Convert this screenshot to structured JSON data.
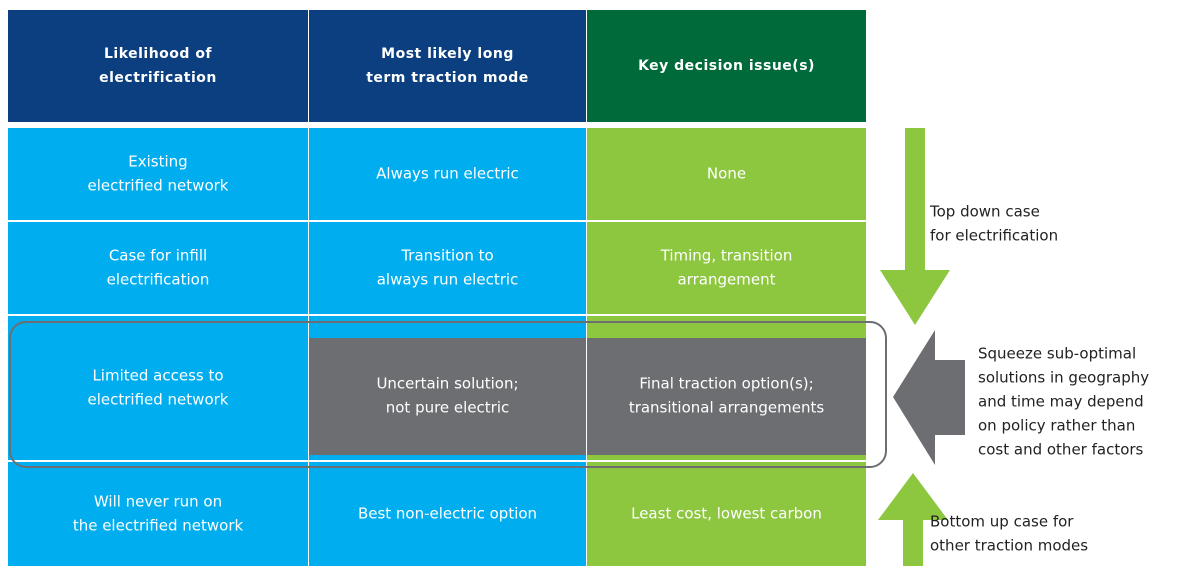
{
  "table": {
    "header": [
      [
        "Likelihood of",
        "electrification"
      ],
      [
        "Most likely long",
        "term traction mode"
      ],
      [
        "Key decision issue(s)"
      ]
    ],
    "rows": [
      [
        [
          "Existing",
          "electrified network"
        ],
        [
          "Always run electric"
        ],
        [
          "None"
        ]
      ],
      [
        [
          "Case for infill",
          "electrification"
        ],
        [
          "Transition to",
          "always run electric"
        ],
        [
          "Timing, transition",
          "arrangement"
        ]
      ],
      [
        [
          "Limited access to",
          "electrified network"
        ],
        [
          "Uncertain solution;",
          "not pure electric"
        ],
        [
          "Final traction option(s);",
          "transitional arrangements"
        ]
      ],
      [
        [
          "Will never run on",
          "the electrified network"
        ],
        [
          "Best non-electric option"
        ],
        [
          "Least cost, lowest carbon"
        ]
      ]
    ]
  },
  "annotations": {
    "top_down": [
      "Top down case",
      "for electrification"
    ],
    "squeeze": [
      "Squeeze sub-optimal",
      "solutions in geography",
      "and time may depend",
      "on policy rather than",
      "cost and other factors"
    ],
    "bottom_up": [
      "Bottom up case for",
      "other traction modes"
    ]
  }
}
